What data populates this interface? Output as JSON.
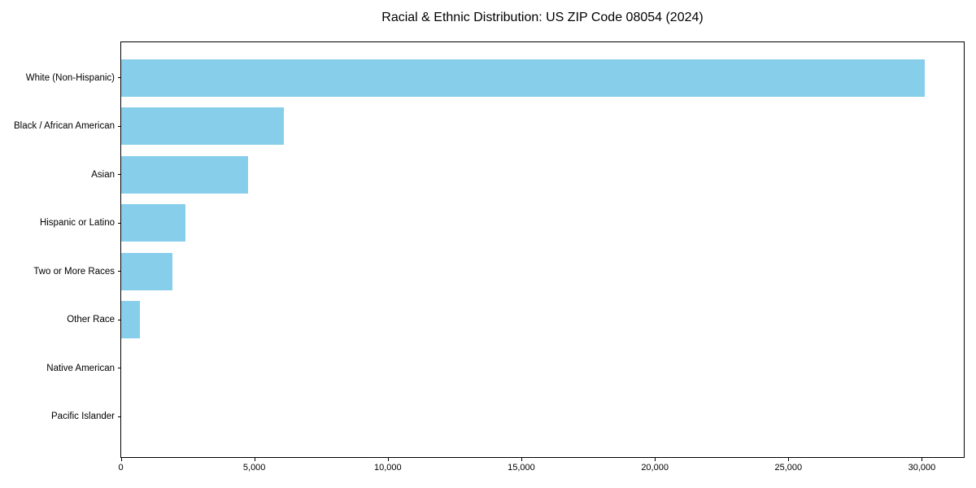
{
  "chart_data": {
    "type": "bar",
    "orientation": "horizontal",
    "title": "Racial & Ethnic Distribution: US ZIP Code 08054 (2024)",
    "categories": [
      "White (Non-Hispanic)",
      "Black / African American",
      "Asian",
      "Hispanic or Latino",
      "Two or More Races",
      "Other Race",
      "Native American",
      "Pacific Islander"
    ],
    "values": [
      30100,
      6080,
      4760,
      2410,
      1920,
      700,
      0,
      0
    ],
    "xlabel": "",
    "ylabel": "",
    "xlim": [
      0,
      31600
    ],
    "x_ticks": [
      0,
      5000,
      10000,
      15000,
      20000,
      25000,
      30000
    ],
    "x_tick_labels": [
      "0",
      "5,000",
      "10,000",
      "15,000",
      "20,000",
      "25,000",
      "30,000"
    ],
    "grid": false,
    "legend": false,
    "bar_color": "#87CEEB",
    "background_color": "#FFFFFF",
    "axis_color": "#000000",
    "text_color": "#000000"
  }
}
